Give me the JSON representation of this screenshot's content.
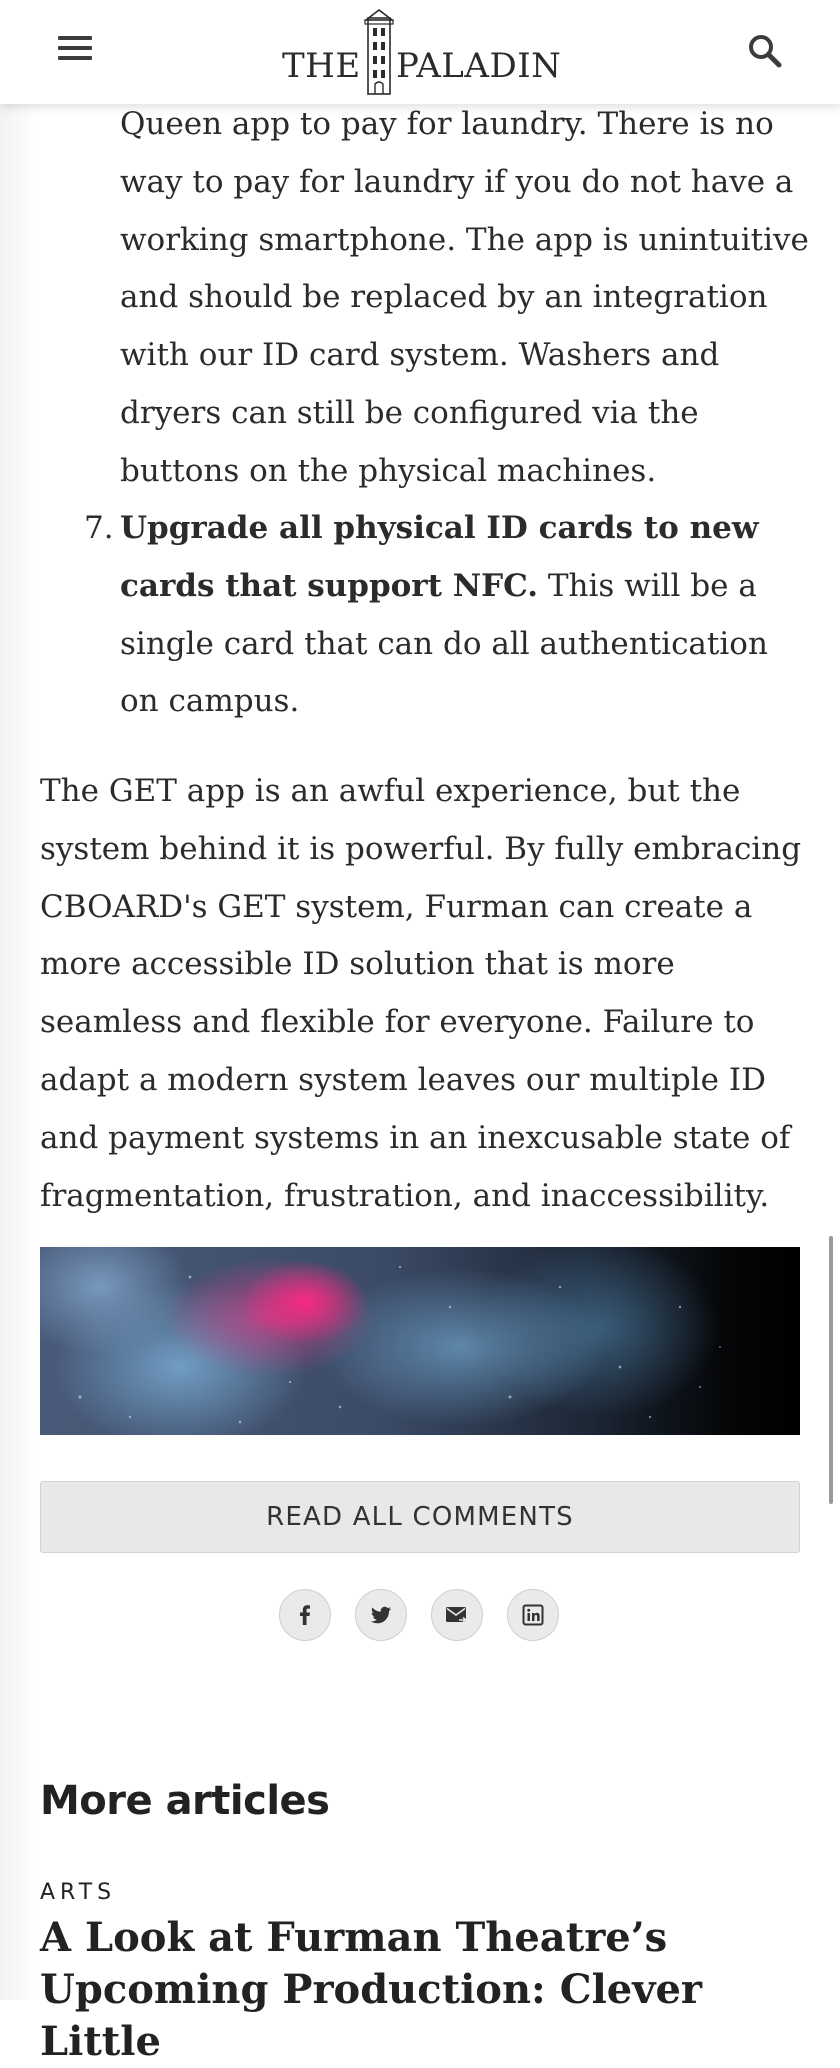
{
  "header": {
    "logo_the": "THE",
    "logo_name": "PALADIN"
  },
  "article": {
    "list_continuation": "Queen app to pay for laundry. There is no way to pay for laundry if you do not have a working smartphone. The app is unintuitive and should be replaced by an integration with our ID card system. Washers and dryers can still be configured via the buttons on the physical machines.",
    "item7_number": "7.",
    "item7_bold": "Upgrade all physical ID cards to new cards that support NFC.",
    "item7_text": " This will be a single card that can do all authentication on campus.",
    "closing_paragraph": "The GET app is an awful experience, but the system behind it is powerful. By fully embracing CBOARD's GET system, Furman can create a more accessible ID solution that is more seamless and flexible for everyone. Failure to adapt a modern system leaves our multiple ID and payment systems in an inexcusable state of fragmentation, frustration, and inaccessibility."
  },
  "comments": {
    "button_label": "READ ALL COMMENTS"
  },
  "share": {
    "icons": [
      "facebook-icon",
      "twitter-icon",
      "email-icon",
      "linkedin-icon"
    ]
  },
  "more_articles": {
    "heading": "More articles",
    "items": [
      {
        "category": "ARTS",
        "title": "A Look at Furman Theatre’s Upcoming Production: Clever Little"
      }
    ]
  },
  "colors": {
    "text": "#2b2b2b",
    "button_bg": "#e8e8e8",
    "header_bg": "#ffffff"
  }
}
